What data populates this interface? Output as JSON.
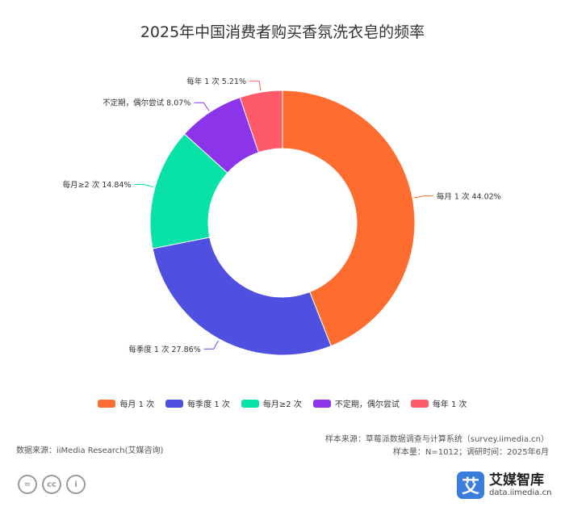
{
  "chart_data": {
    "type": "pie",
    "title": "2025年中国消费者购买香氛洗衣皂的频率",
    "categories": [
      "每月 1 次",
      "每季度 1 次",
      "每月≥2 次",
      "不定期，偶尔尝试",
      "每年 1 次"
    ],
    "values": [
      44.02,
      27.86,
      14.84,
      8.07,
      5.21
    ],
    "slice_labels": [
      "每月 1 次 44.02%",
      "每季度 1 次 27.86%",
      "每月≥2 次 14.84%",
      "不定期，偶尔尝试 8.07%",
      "每年 1 次 5.21%"
    ],
    "colors": [
      "#fe6d2f",
      "#5050e0",
      "#08e2a8",
      "#8c34ea",
      "#ff5a6a"
    ],
    "legend_position": "bottom"
  },
  "source": {
    "sample_source": "样本来源：草莓派数据调查与计算系统（survey.iimedia.cn）",
    "sample_size": "样本量：N=1012；调研时间：2025年6月",
    "data_source": "数据来源：iiMedia Research(艾媒咨询)"
  },
  "license_icons": [
    "=",
    "cc",
    "i"
  ],
  "brand": {
    "logo_char": "艾",
    "name": "艾媒智库",
    "url": "data.iimedia.cn"
  }
}
